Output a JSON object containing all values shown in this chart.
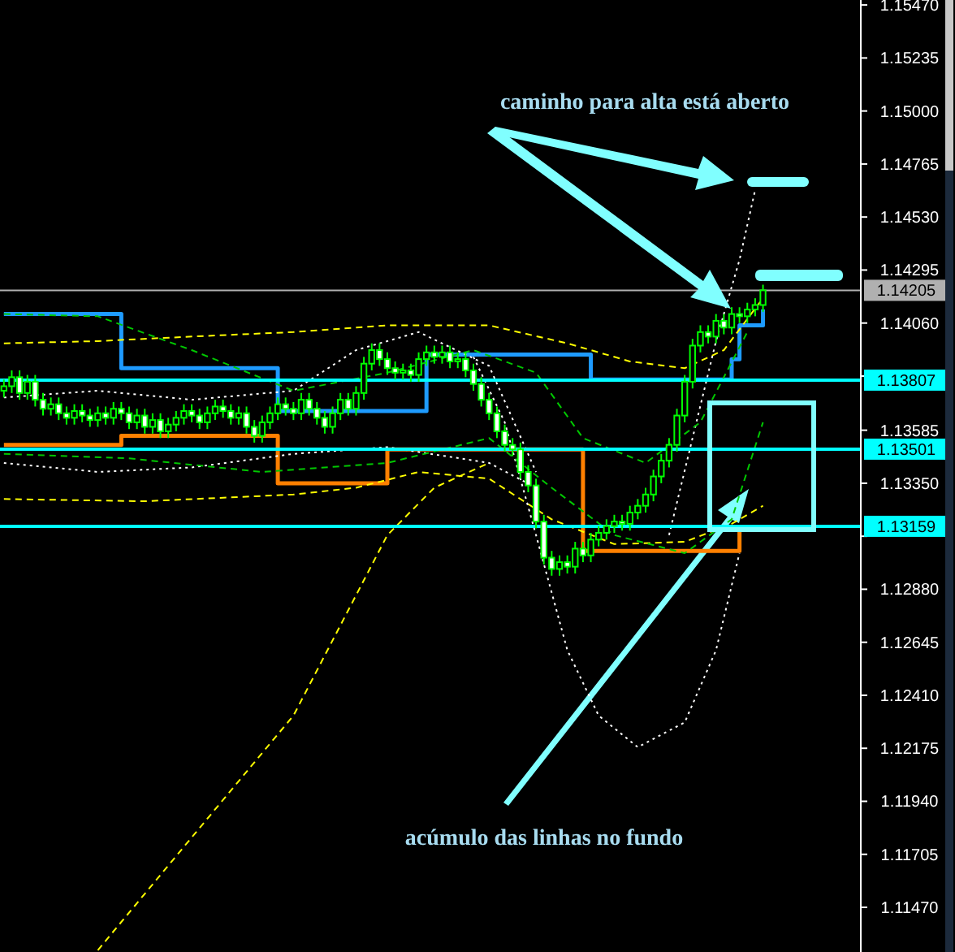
{
  "chart_data": {
    "type": "candlestick",
    "color": "#00ff00",
    "categories": [
      null,
      null,
      null,
      null,
      null,
      null,
      null,
      null,
      null,
      null,
      null,
      null,
      null,
      null,
      null,
      null,
      null,
      null,
      null,
      null,
      null,
      null,
      null,
      null,
      null,
      null,
      null,
      null,
      null,
      null,
      null,
      null,
      null,
      null,
      null,
      null,
      null,
      null,
      null,
      null,
      null,
      null,
      null,
      null,
      null,
      null,
      null,
      null,
      null,
      null,
      null,
      null,
      null,
      null,
      null,
      null,
      null,
      null,
      null,
      null,
      null,
      null,
      null,
      null,
      null,
      null,
      null,
      null,
      null,
      null,
      null,
      null,
      null,
      null,
      null,
      null,
      null,
      null,
      null,
      null,
      null,
      null,
      null,
      null,
      null,
      null,
      null,
      null,
      null,
      null,
      null,
      null,
      null,
      null,
      null,
      null,
      null,
      null,
      null,
      null,
      null,
      null,
      null,
      null,
      null,
      null,
      null,
      null,
      null,
      null
    ],
    "ohlc": [
      [
        1.1376,
        1.1381,
        1.1373,
        1.1378
      ],
      [
        1.1378,
        1.1385,
        1.1375,
        1.1382
      ],
      [
        1.1382,
        1.1385,
        1.1372,
        1.1375
      ],
      [
        1.1375,
        1.1383,
        1.1372,
        1.138
      ],
      [
        1.138,
        1.1383,
        1.1369,
        1.1372
      ],
      [
        1.1372,
        1.1375,
        1.1365,
        1.1368
      ],
      [
        1.1368,
        1.1373,
        1.1365,
        1.137
      ],
      [
        1.137,
        1.1373,
        1.1363,
        1.1366
      ],
      [
        1.1366,
        1.1369,
        1.1361,
        1.1364
      ],
      [
        1.1364,
        1.137,
        1.1361,
        1.1367
      ],
      [
        1.1367,
        1.137,
        1.1362,
        1.1365
      ],
      [
        1.1365,
        1.1368,
        1.136,
        1.1363
      ],
      [
        1.1363,
        1.1369,
        1.136,
        1.1366
      ],
      [
        1.1366,
        1.1369,
        1.1361,
        1.1364
      ],
      [
        1.1364,
        1.1371,
        1.1361,
        1.1368
      ],
      [
        1.1368,
        1.1371,
        1.1363,
        1.1366
      ],
      [
        1.1366,
        1.1369,
        1.1359,
        1.1362
      ],
      [
        1.1362,
        1.1368,
        1.1359,
        1.1365
      ],
      [
        1.1365,
        1.1368,
        1.1357,
        1.136
      ],
      [
        1.136,
        1.1366,
        1.1357,
        1.1363
      ],
      [
        1.1363,
        1.1366,
        1.1355,
        1.1358
      ],
      [
        1.1358,
        1.1364,
        1.1355,
        1.1361
      ],
      [
        1.1361,
        1.1367,
        1.1358,
        1.1364
      ],
      [
        1.1364,
        1.137,
        1.1361,
        1.1367
      ],
      [
        1.1367,
        1.137,
        1.1362,
        1.1365
      ],
      [
        1.1365,
        1.1368,
        1.1359,
        1.1362
      ],
      [
        1.1362,
        1.1369,
        1.1359,
        1.1366
      ],
      [
        1.1366,
        1.1372,
        1.1363,
        1.1369
      ],
      [
        1.1369,
        1.1372,
        1.1364,
        1.1367
      ],
      [
        1.1367,
        1.137,
        1.1361,
        1.1364
      ],
      [
        1.1364,
        1.1369,
        1.1361,
        1.1366
      ],
      [
        1.1366,
        1.1369,
        1.1357,
        1.136
      ],
      [
        1.136,
        1.1363,
        1.1353,
        1.1356
      ],
      [
        1.1356,
        1.1365,
        1.1353,
        1.1362
      ],
      [
        1.1362,
        1.1369,
        1.1359,
        1.1366
      ],
      [
        1.1366,
        1.1373,
        1.1363,
        1.137
      ],
      [
        1.137,
        1.1373,
        1.1365,
        1.1368
      ],
      [
        1.1368,
        1.1371,
        1.1363,
        1.1366
      ],
      [
        1.1366,
        1.1375,
        1.1363,
        1.1372
      ],
      [
        1.1372,
        1.1375,
        1.1365,
        1.1368
      ],
      [
        1.1368,
        1.1371,
        1.1361,
        1.1364
      ],
      [
        1.1364,
        1.1367,
        1.1357,
        1.136
      ],
      [
        1.136,
        1.1369,
        1.1357,
        1.1366
      ],
      [
        1.1366,
        1.1375,
        1.1363,
        1.1372
      ],
      [
        1.1372,
        1.1375,
        1.1365,
        1.1368
      ],
      [
        1.1368,
        1.1378,
        1.1365,
        1.1375
      ],
      [
        1.1375,
        1.1391,
        1.1372,
        1.1388
      ],
      [
        1.1388,
        1.1397,
        1.1385,
        1.1394
      ],
      [
        1.1394,
        1.1397,
        1.1387,
        1.139
      ],
      [
        1.139,
        1.1393,
        1.1383,
        1.1386
      ],
      [
        1.1386,
        1.1389,
        1.1381,
        1.1384
      ],
      [
        1.1384,
        1.1388,
        1.1381,
        1.1385
      ],
      [
        1.1385,
        1.1388,
        1.138,
        1.1383
      ],
      [
        1.1383,
        1.1393,
        1.138,
        1.139
      ],
      [
        1.139,
        1.1396,
        1.1387,
        1.1393
      ],
      [
        1.1393,
        1.1396,
        1.1388,
        1.1391
      ],
      [
        1.1391,
        1.1396,
        1.1388,
        1.1393
      ],
      [
        1.1393,
        1.1396,
        1.1386,
        1.1389
      ],
      [
        1.1389,
        1.1393,
        1.1386,
        1.139
      ],
      [
        1.139,
        1.1393,
        1.1382,
        1.1385
      ],
      [
        1.1385,
        1.1388,
        1.1376,
        1.1379
      ],
      [
        1.1379,
        1.1382,
        1.1369,
        1.1372
      ],
      [
        1.1372,
        1.1375,
        1.1363,
        1.1366
      ],
      [
        1.1366,
        1.1369,
        1.1355,
        1.1358
      ],
      [
        1.1358,
        1.1361,
        1.1349,
        1.1352
      ],
      [
        1.1352,
        1.1355,
        1.1347,
        1.135
      ],
      [
        1.135,
        1.1353,
        1.1337,
        1.134
      ],
      [
        1.134,
        1.1343,
        1.1331,
        1.1334
      ],
      [
        1.1334,
        1.1337,
        1.1315,
        1.1318
      ],
      [
        1.1318,
        1.1321,
        1.1299,
        1.1302
      ],
      [
        1.1302,
        1.1305,
        1.1294,
        1.1297
      ],
      [
        1.1297,
        1.1303,
        1.1294,
        1.13
      ],
      [
        1.13,
        1.1303,
        1.1295,
        1.1298
      ],
      [
        1.1298,
        1.1309,
        1.1295,
        1.1306
      ],
      [
        1.1306,
        1.1309,
        1.13,
        1.1303
      ],
      [
        1.1303,
        1.1313,
        1.13,
        1.131
      ],
      [
        1.131,
        1.1316,
        1.1307,
        1.1313
      ],
      [
        1.1313,
        1.1319,
        1.131,
        1.1316
      ],
      [
        1.1316,
        1.1321,
        1.1313,
        1.1318
      ],
      [
        1.1318,
        1.1321,
        1.1314,
        1.1317
      ],
      [
        1.1317,
        1.1325,
        1.1314,
        1.1322
      ],
      [
        1.1322,
        1.1328,
        1.1319,
        1.1325
      ],
      [
        1.1325,
        1.1333,
        1.1322,
        1.133
      ],
      [
        1.133,
        1.1341,
        1.1327,
        1.1338
      ],
      [
        1.1338,
        1.1348,
        1.1335,
        1.1345
      ],
      [
        1.1345,
        1.1355,
        1.1342,
        1.1352
      ],
      [
        1.1352,
        1.1368,
        1.1349,
        1.1365
      ],
      [
        1.1365,
        1.1383,
        1.1362,
        1.138
      ],
      [
        1.138,
        1.1399,
        1.1377,
        1.1396
      ],
      [
        1.1396,
        1.1405,
        1.1393,
        1.1402
      ],
      [
        1.1402,
        1.1405,
        1.1397,
        1.14
      ],
      [
        1.14,
        1.141,
        1.1397,
        1.1407
      ],
      [
        1.1407,
        1.141,
        1.1401,
        1.1404
      ],
      [
        1.1404,
        1.1413,
        1.1401,
        1.141
      ],
      [
        1.141,
        1.1413,
        1.1406,
        1.1409
      ],
      [
        1.1409,
        1.1415,
        1.1406,
        1.1412
      ],
      [
        1.1412,
        1.1417,
        1.1409,
        1.1414
      ],
      [
        1.1414,
        1.1423,
        1.1411,
        1.14205
      ],
      null,
      null,
      null,
      null,
      null,
      null,
      null,
      null,
      null,
      null,
      null,
      null
    ],
    "series": [
      {
        "type": "step",
        "color": "#1e9bff",
        "line_style": "solid",
        "values": [
          1.141,
          null,
          null,
          null,
          null,
          null,
          null,
          null,
          null,
          null,
          null,
          null,
          null,
          null,
          null,
          1.1386,
          null,
          null,
          null,
          null,
          null,
          null,
          null,
          null,
          null,
          null,
          null,
          null,
          null,
          null,
          null,
          null,
          null,
          null,
          null,
          1.1367,
          null,
          null,
          null,
          null,
          null,
          null,
          null,
          null,
          null,
          null,
          null,
          null,
          null,
          null,
          null,
          null,
          null,
          null,
          1.1392,
          null,
          null,
          null,
          null,
          null,
          null,
          null,
          null,
          null,
          null,
          null,
          null,
          null,
          null,
          null,
          null,
          null,
          null,
          null,
          null,
          1.1381,
          null,
          null,
          null,
          null,
          null,
          null,
          null,
          null,
          null,
          null,
          null,
          null,
          null,
          null,
          null,
          null,
          null,
          1.139,
          1.1405,
          null,
          null,
          1.1412,
          null,
          null,
          null,
          null,
          null,
          null,
          null,
          null,
          null,
          null,
          null,
          null
        ]
      },
      {
        "type": "step",
        "color": "#ff8000",
        "line_style": "solid",
        "values": [
          1.1352,
          null,
          null,
          null,
          null,
          null,
          null,
          null,
          null,
          null,
          null,
          null,
          null,
          null,
          null,
          1.1356,
          null,
          null,
          null,
          null,
          null,
          null,
          null,
          null,
          null,
          null,
          null,
          null,
          null,
          null,
          null,
          null,
          null,
          null,
          null,
          1.1335,
          null,
          null,
          null,
          null,
          null,
          null,
          null,
          null,
          null,
          null,
          null,
          null,
          null,
          1.135,
          null,
          null,
          null,
          null,
          null,
          null,
          null,
          null,
          null,
          null,
          null,
          null,
          null,
          null,
          null,
          null,
          null,
          null,
          null,
          null,
          null,
          null,
          null,
          null,
          1.1305,
          null,
          null,
          null,
          null,
          null,
          null,
          null,
          null,
          null,
          null,
          null,
          null,
          null,
          null,
          null,
          null,
          null,
          null,
          null,
          1.1315,
          null,
          null,
          null,
          null,
          null,
          null,
          null,
          null,
          null,
          null,
          null,
          null,
          null,
          null,
          null
        ]
      },
      {
        "type": "line",
        "color": "#ffff00",
        "line_style": "dashed",
        "values": [
          1.1397,
          null,
          null,
          null,
          null,
          null,
          null,
          null,
          null,
          null,
          null,
          null,
          1.1398,
          null,
          null,
          null,
          null,
          null,
          null,
          null,
          null,
          null,
          null,
          null,
          1.14,
          null,
          null,
          null,
          null,
          null,
          null,
          null,
          null,
          null,
          null,
          null,
          null,
          1.1402,
          null,
          null,
          null,
          null,
          null,
          null,
          null,
          null,
          null,
          null,
          null,
          1.1405,
          null,
          null,
          null,
          null,
          null,
          null,
          null,
          null,
          null,
          null,
          null,
          null,
          1.1405,
          null,
          null,
          null,
          null,
          null,
          null,
          null,
          null,
          null,
          1.1397,
          null,
          null,
          null,
          null,
          null,
          null,
          null,
          1.1389,
          null,
          null,
          null,
          null,
          null,
          null,
          1.1386,
          null,
          null,
          null,
          null,
          1.1394,
          null,
          null,
          null,
          null,
          1.1417,
          null,
          null,
          null,
          null,
          null,
          null,
          null,
          null,
          null,
          null,
          null,
          null
        ]
      },
      {
        "type": "line",
        "color": "#ffff00",
        "line_style": "dashed",
        "values": [
          1.1328,
          null,
          null,
          null,
          null,
          null,
          null,
          null,
          null,
          null,
          null,
          null,
          null,
          null,
          null,
          null,
          null,
          null,
          1.1327,
          null,
          null,
          null,
          null,
          null,
          null,
          null,
          null,
          null,
          null,
          null,
          null,
          null,
          null,
          null,
          null,
          null,
          null,
          1.133,
          null,
          null,
          null,
          null,
          null,
          null,
          null,
          1.1333,
          null,
          null,
          null,
          null,
          null,
          null,
          null,
          1.134,
          null,
          null,
          null,
          null,
          null,
          null,
          null,
          null,
          1.1337,
          null,
          null,
          null,
          null,
          null,
          null,
          null,
          1.1319,
          null,
          null,
          null,
          null,
          null,
          null,
          null,
          1.1308,
          null,
          null,
          null,
          null,
          null,
          null,
          null,
          null,
          1.1309,
          null,
          null,
          null,
          null,
          null,
          1.1317,
          null,
          null,
          null,
          1.1325,
          null,
          null,
          null,
          null,
          null,
          null,
          null,
          null,
          null,
          null,
          null,
          null
        ]
      },
      {
        "type": "line",
        "color": "#ffff00",
        "line_style": "dashed",
        "values": [
          null,
          null,
          null,
          null,
          null,
          null,
          null,
          null,
          null,
          null,
          null,
          null,
          1.1128,
          null,
          null,
          null,
          null,
          null,
          null,
          null,
          null,
          null,
          null,
          null,
          1.1178,
          null,
          null,
          null,
          null,
          null,
          null,
          null,
          null,
          null,
          null,
          null,
          null,
          1.1232,
          null,
          null,
          null,
          null,
          null,
          null,
          null,
          null,
          null,
          null,
          null,
          1.1312,
          null,
          null,
          null,
          null,
          null,
          1.1333,
          null,
          null,
          null,
          null,
          null,
          null,
          1.1344,
          null,
          null,
          null,
          null,
          null,
          null,
          null,
          null,
          null,
          null,
          null,
          null,
          null,
          null,
          null,
          null,
          null,
          null,
          null,
          null,
          null,
          null,
          null,
          null,
          null,
          null,
          null,
          null,
          null,
          null,
          null,
          null,
          null,
          null,
          null,
          null,
          null,
          null,
          null,
          null,
          null,
          null,
          null,
          null,
          null,
          null,
          null
        ]
      },
      {
        "type": "line",
        "color": "#ffffff",
        "line_style": "dotted",
        "values": [
          null,
          null,
          null,
          null,
          null,
          null,
          null,
          null,
          null,
          null,
          null,
          null,
          null,
          null,
          null,
          null,
          null,
          null,
          null,
          null,
          null,
          null,
          null,
          null,
          null,
          null,
          null,
          null,
          null,
          null,
          null,
          null,
          null,
          null,
          null,
          null,
          null,
          null,
          null,
          null,
          null,
          null,
          null,
          null,
          null,
          null,
          null,
          null,
          null,
          null,
          null,
          null,
          null,
          null,
          null,
          null,
          null,
          null,
          null,
          null,
          1.1391,
          null,
          null,
          null,
          1.1362,
          null,
          null,
          null,
          1.1312,
          null,
          null,
          null,
          1.1261,
          null,
          null,
          null,
          1.1232,
          null,
          null,
          null,
          null,
          1.1218,
          null,
          null,
          null,
          null,
          null,
          1.1229,
          null,
          null,
          null,
          1.1261,
          null,
          null,
          1.1304,
          null,
          null,
          null,
          null,
          null,
          null,
          null,
          null,
          null,
          null,
          null,
          null,
          null,
          null,
          null
        ]
      },
      {
        "type": "line",
        "color": "#ffffff",
        "line_style": "dotted",
        "values": [
          null,
          null,
          null,
          null,
          null,
          null,
          null,
          null,
          null,
          null,
          null,
          null,
          null,
          null,
          null,
          null,
          null,
          null,
          null,
          null,
          null,
          null,
          null,
          null,
          null,
          null,
          null,
          null,
          null,
          null,
          null,
          null,
          null,
          null,
          null,
          null,
          null,
          null,
          null,
          null,
          null,
          null,
          null,
          null,
          null,
          null,
          null,
          null,
          null,
          null,
          null,
          null,
          null,
          null,
          null,
          null,
          null,
          null,
          null,
          null,
          null,
          null,
          null,
          null,
          null,
          null,
          null,
          null,
          null,
          null,
          null,
          null,
          null,
          null,
          null,
          null,
          null,
          null,
          null,
          null,
          null,
          null,
          null,
          null,
          null,
          1.1312,
          null,
          null,
          1.1355,
          null,
          null,
          1.1398,
          null,
          null,
          1.1434,
          null,
          1.1465,
          null,
          null,
          null,
          null,
          null,
          null,
          null,
          null,
          null,
          null,
          null,
          null,
          null
        ]
      },
      {
        "type": "line",
        "color": "#ffffff",
        "line_style": "dotted",
        "values": [
          1.1373,
          null,
          null,
          null,
          null,
          null,
          null,
          null,
          null,
          null,
          null,
          null,
          1.1376,
          null,
          null,
          null,
          null,
          null,
          null,
          null,
          null,
          null,
          null,
          null,
          1.1372,
          null,
          null,
          null,
          null,
          null,
          null,
          null,
          null,
          null,
          null,
          null,
          null,
          1.1376,
          null,
          null,
          null,
          null,
          null,
          null,
          null,
          1.1394,
          null,
          null,
          null,
          null,
          null,
          null,
          null,
          1.1402,
          null,
          null,
          null,
          null,
          null,
          null,
          null,
          null,
          1.1387,
          null,
          null,
          null,
          null,
          null,
          1.134,
          null,
          null,
          null,
          null,
          null,
          null,
          null,
          null,
          null,
          null,
          null,
          null,
          null,
          null,
          null,
          null,
          null,
          null,
          null,
          null,
          null,
          null,
          null,
          null,
          null,
          null,
          null,
          null,
          null,
          null,
          null,
          null,
          null,
          null,
          null,
          null,
          null,
          null,
          null,
          null,
          null
        ]
      },
      {
        "type": "line",
        "color": "#ffffff",
        "line_style": "dotted",
        "values": [
          1.1344,
          null,
          null,
          null,
          null,
          null,
          null,
          null,
          null,
          null,
          null,
          null,
          1.134,
          null,
          null,
          null,
          null,
          null,
          null,
          null,
          null,
          null,
          null,
          null,
          1.1342,
          null,
          null,
          null,
          null,
          null,
          null,
          null,
          null,
          null,
          null,
          null,
          null,
          1.1348,
          null,
          null,
          null,
          null,
          null,
          null,
          null,
          null,
          null,
          null,
          null,
          1.1351,
          null,
          null,
          null,
          null,
          null,
          null,
          null,
          null,
          null,
          null,
          null,
          null,
          1.1344,
          null,
          null,
          null,
          null,
          null,
          1.1333,
          null,
          null,
          null,
          null,
          null,
          null,
          null,
          null,
          null,
          null,
          null,
          null,
          null,
          null,
          null,
          null,
          null,
          null,
          null,
          null,
          null,
          null,
          null,
          null,
          null,
          null,
          null,
          null,
          null,
          null,
          null,
          null,
          null,
          null,
          null,
          null,
          null,
          null,
          null,
          null,
          null
        ]
      },
      {
        "type": "line",
        "color": "#00c800",
        "line_style": "dashed",
        "values": [
          1.141,
          null,
          null,
          null,
          null,
          null,
          null,
          null,
          null,
          null,
          null,
          null,
          1.1409,
          null,
          null,
          null,
          null,
          null,
          null,
          null,
          null,
          null,
          null,
          null,
          1.1394,
          null,
          null,
          null,
          null,
          null,
          null,
          null,
          null,
          null,
          null,
          null,
          null,
          1.1376,
          null,
          null,
          null,
          null,
          null,
          null,
          null,
          null,
          null,
          null,
          null,
          1.1384,
          null,
          null,
          null,
          null,
          null,
          null,
          null,
          null,
          null,
          null,
          1.1394,
          null,
          null,
          null,
          null,
          null,
          null,
          null,
          1.1384,
          null,
          null,
          null,
          null,
          null,
          1.1355,
          null,
          null,
          null,
          null,
          null,
          null,
          null,
          1.1344,
          null,
          null,
          null,
          null,
          null,
          null,
          1.1362,
          null,
          null,
          null,
          null,
          null,
          1.1402,
          null,
          null,
          null,
          null,
          null,
          null,
          null,
          null,
          null,
          null,
          null,
          null,
          null,
          null
        ]
      },
      {
        "type": "line",
        "color": "#00c800",
        "line_style": "dashed",
        "values": [
          1.1348,
          null,
          null,
          null,
          null,
          null,
          null,
          null,
          null,
          null,
          null,
          null,
          null,
          null,
          null,
          null,
          1.1346,
          null,
          null,
          null,
          null,
          null,
          null,
          null,
          null,
          null,
          null,
          null,
          null,
          null,
          null,
          null,
          null,
          1.134,
          null,
          null,
          null,
          null,
          null,
          null,
          null,
          null,
          null,
          null,
          null,
          null,
          null,
          null,
          null,
          1.1344,
          null,
          null,
          null,
          null,
          null,
          null,
          null,
          null,
          null,
          null,
          null,
          null,
          1.1355,
          null,
          null,
          null,
          null,
          null,
          null,
          null,
          1.1333,
          null,
          null,
          null,
          null,
          null,
          null,
          null,
          1.1312,
          null,
          null,
          null,
          null,
          null,
          null,
          null,
          null,
          1.1304,
          null,
          null,
          null,
          null,
          null,
          1.1319,
          null,
          null,
          null,
          1.1362,
          null,
          null,
          null,
          null,
          null,
          null,
          null,
          null,
          null,
          null,
          null,
          null
        ]
      }
    ],
    "ylim": [
      1.11272,
      1.15492
    ],
    "yticks": [
      {
        "value": 1.1547,
        "label": "1.15470"
      },
      {
        "value": 1.15235,
        "label": "1.15235"
      },
      {
        "value": 1.15,
        "label": "1.15000"
      },
      {
        "value": 1.14765,
        "label": "1.14765"
      },
      {
        "value": 1.1453,
        "label": "1.14530"
      },
      {
        "value": 1.14295,
        "label": "1.14295"
      },
      {
        "value": 1.1406,
        "label": "1.14060"
      },
      {
        "value": 1.13825,
        "label": null
      },
      {
        "value": 1.13585,
        "label": "1.13585"
      },
      {
        "value": 1.1335,
        "label": "1.13350"
      },
      {
        "value": 1.13115,
        "label": null
      },
      {
        "value": 1.1288,
        "label": "1.12880"
      },
      {
        "value": 1.12645,
        "label": "1.12645"
      },
      {
        "value": 1.1241,
        "label": "1.12410"
      },
      {
        "value": 1.12175,
        "label": "1.12175"
      },
      {
        "value": 1.1194,
        "label": "1.11940"
      },
      {
        "value": 1.11705,
        "label": "1.11705"
      },
      {
        "value": 1.1147,
        "label": "1.11470"
      }
    ],
    "ref_lines": [
      {
        "axis": "y",
        "value": 1.14205,
        "label": "1.14205",
        "color": "#b0b0b0"
      },
      {
        "axis": "y",
        "value": 1.13807,
        "label": "1.13807",
        "color": "#00ffff"
      },
      {
        "axis": "y",
        "value": 1.13501,
        "label": "1.13501",
        "color": "#00ffff"
      },
      {
        "axis": "y",
        "value": 1.13159,
        "label": "1.13159",
        "color": "#00ffff"
      }
    ],
    "annotations": [
      "caminho para alta está aberto",
      "acúmulo das linhas no fundo"
    ],
    "grid": false
  }
}
